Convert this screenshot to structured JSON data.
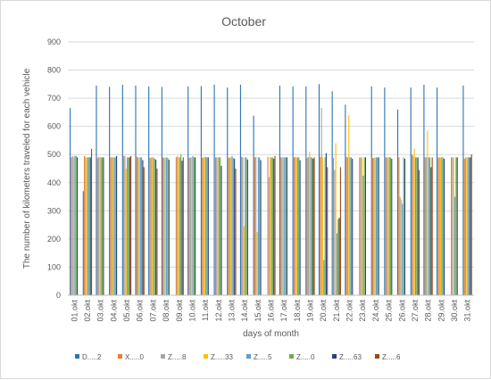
{
  "chart_data": {
    "type": "bar",
    "title": "October",
    "xlabel": "days of month",
    "ylabel": "The number of kilometers traveled for each vehicle",
    "ylim": [
      0,
      900
    ],
    "yticks": [
      0,
      100,
      200,
      300,
      400,
      500,
      600,
      700,
      800,
      900
    ],
    "grid": true,
    "legend_position": "bottom",
    "categories": [
      "01.okt",
      "02.okt",
      "03.okt",
      "04.okt",
      "05.okt",
      "06.okt",
      "07.okt",
      "08.okt",
      "09.okt",
      "10.okt",
      "11.okt",
      "12.okt",
      "13.okt",
      "14.okt",
      "15.okt",
      "16.okt",
      "17.okt",
      "18.okt",
      "19.okt",
      "20.okt",
      "21.okt",
      "22.okt",
      "23.okt",
      "24.okt",
      "25.okt",
      "26.okt",
      "27.okt",
      "28.okt",
      "29.okt",
      "30.okt",
      "31.okt"
    ],
    "series": [
      {
        "name": "D.....2",
        "color": "#2E75B6",
        "values": [
          665,
          370,
          745,
          740,
          748,
          745,
          742,
          740,
          0,
          742,
          743,
          748,
          738,
          748,
          638,
          0,
          745,
          742,
          742,
          750,
          725,
          677,
          0,
          742,
          738,
          660,
          738,
          748,
          738,
          0,
          745
        ]
      },
      {
        "name": "X.....0",
        "color": "#ED7D31",
        "values": [
          490,
          495,
          488,
          490,
          495,
          492,
          488,
          490,
          490,
          488,
          488,
          490,
          488,
          492,
          490,
          492,
          490,
          490,
          488,
          492,
          488,
          492,
          490,
          488,
          490,
          490,
          500,
          490,
          490,
          490,
          485
        ]
      },
      {
        "name": "Z.....8",
        "color": "#A5A5A5",
        "values": [
          495,
          490,
          492,
          490,
          495,
          490,
          490,
          488,
          495,
          490,
          492,
          490,
          490,
          490,
          492,
          420,
          490,
          492,
          492,
          665,
          445,
          490,
          490,
          488,
          490,
          350,
          495,
          490,
          490,
          490,
          490
        ]
      },
      {
        "name": "Z.....33",
        "color": "#FFC000",
        "values": [
          490,
          490,
          492,
          490,
          450,
          490,
          490,
          490,
          490,
          490,
          490,
          490,
          490,
          245,
          225,
          490,
          490,
          490,
          510,
          490,
          540,
          640,
          490,
          490,
          490,
          340,
          520,
          585,
          490,
          490,
          490
        ]
      },
      {
        "name": "Z.....5",
        "color": "#5B9BD5",
        "values": [
          495,
          490,
          490,
          490,
          490,
          490,
          490,
          490,
          490,
          495,
          492,
          490,
          495,
          490,
          490,
          490,
          490,
          490,
          490,
          125,
          220,
          490,
          425,
          490,
          490,
          325,
          490,
          490,
          490,
          350,
          490
        ]
      },
      {
        "name": "Z.....0",
        "color": "#70AD47",
        "values": [
          495,
          490,
          490,
          490,
          490,
          490,
          485,
          488,
          500,
          490,
          490,
          490,
          488,
          490,
          490,
          490,
          490,
          490,
          490,
          490,
          270,
          490,
          490,
          490,
          490,
          490,
          490,
          490,
          490,
          490,
          490
        ]
      },
      {
        "name": "Z.....63",
        "color": "#264478",
        "values": [
          490,
          490,
          490,
          495,
          490,
          480,
          482,
          482,
          478,
          490,
          490,
          460,
          485,
          482,
          480,
          485,
          490,
          480,
          485,
          505,
          275,
          485,
          490,
          490,
          485,
          485,
          490,
          455,
          485,
          490,
          490
        ]
      },
      {
        "name": "Z.....6",
        "color": "#9E480E",
        "values": [
          0,
          520,
          0,
          0,
          495,
          455,
          450,
          0,
          490,
          0,
          0,
          0,
          450,
          0,
          0,
          495,
          0,
          0,
          490,
          455,
          455,
          0,
          0,
          0,
          0,
          0,
          445,
          490,
          0,
          0,
          500
        ]
      }
    ]
  }
}
